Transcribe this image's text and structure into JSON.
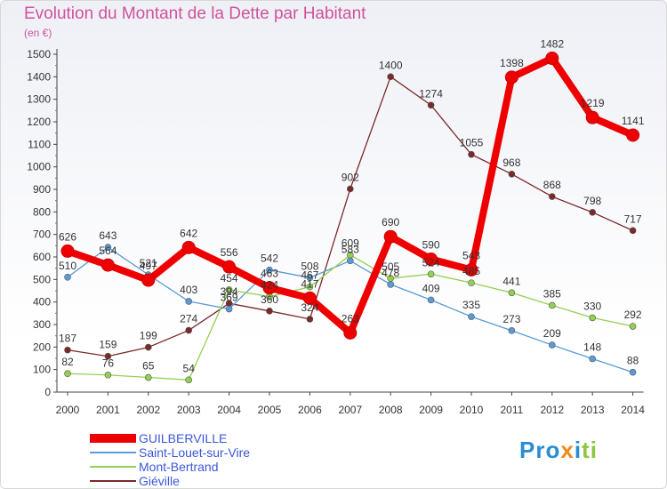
{
  "page": {
    "title": "Evolution du Montant de la Dette par Habitant",
    "unit": "(en €)",
    "logo": [
      "Pro",
      "x",
      "i",
      "ti"
    ]
  },
  "chart_data": {
    "type": "line",
    "title": "Evolution du Montant de la Dette par Habitant",
    "ylabel": "(en €)",
    "xlabel": "",
    "ylim": [
      0,
      1500
    ],
    "yticks": [
      0,
      100,
      200,
      300,
      400,
      500,
      600,
      700,
      800,
      900,
      1000,
      1100,
      1200,
      1300,
      1400,
      1500
    ],
    "grid": false,
    "legend_position": "bottom-left",
    "x": [
      "2000",
      "2001",
      "2002",
      "2003",
      "2004",
      "2005",
      "2006",
      "2007",
      "2008",
      "2009",
      "2010",
      "2011",
      "2012",
      "2013",
      "2014"
    ],
    "series": [
      {
        "name": "GUILBERVILLE",
        "color": "#ee0000",
        "values": [
          626,
          564,
          497,
          642,
          556,
          463,
          417,
          263,
          690,
          590,
          543,
          1398,
          1482,
          1219,
          1141
        ],
        "labels": [
          "626",
          "564",
          "497",
          "642",
          "556",
          "463",
          "417",
          "263",
          "690",
          "590",
          "543",
          "1398",
          "1482",
          "1219",
          "1141"
        ]
      },
      {
        "name": "Saint-Louet-sur-Vire",
        "color": "#5b9bd5",
        "values": [
          510,
          643,
          521,
          403,
          369,
          542,
          508,
          583,
          478,
          409,
          335,
          273,
          209,
          148,
          88
        ],
        "labels": [
          "510",
          "643",
          "521",
          "403",
          "369",
          "542",
          "508",
          "583",
          "478",
          "409",
          "335",
          "273",
          "209",
          "148",
          "88"
        ]
      },
      {
        "name": "Mont-Bertrand",
        "color": "#92d050",
        "values": [
          82,
          76,
          65,
          54,
          454,
          424,
          467,
          609,
          505,
          524,
          485,
          441,
          385,
          330,
          292
        ],
        "labels": [
          "82",
          "76",
          "65",
          "54",
          "454",
          "424",
          "467",
          "609",
          "505",
          "524",
          "485",
          "441",
          "385",
          "330",
          "292"
        ]
      },
      {
        "name": "Giéville",
        "color": "#7b2a2a",
        "values": [
          187,
          159,
          199,
          274,
          394,
          360,
          324,
          902,
          1400,
          1274,
          1055,
          968,
          868,
          798,
          717
        ],
        "labels": [
          "187",
          "159",
          "199",
          "274",
          "394",
          "360",
          "324",
          "902",
          "1400",
          "1274",
          "1055",
          "968",
          "868",
          "798",
          "717"
        ]
      }
    ]
  }
}
